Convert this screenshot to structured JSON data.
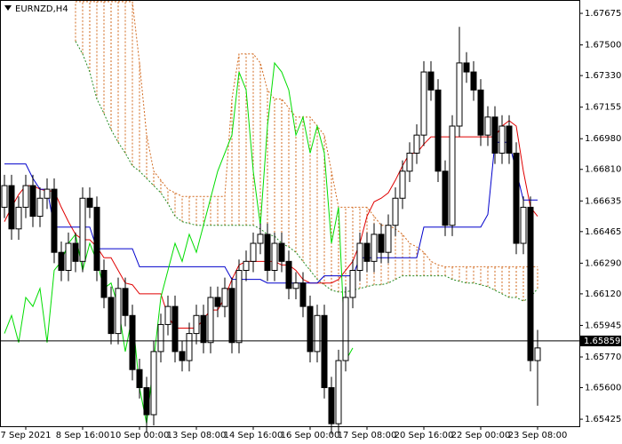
{
  "chart_data": {
    "type": "candlestick",
    "title": "EURNZD,H4",
    "categories": [
      null,
      null,
      null,
      "7 Sep 2021",
      null,
      null,
      null,
      null,
      null,
      null,
      null,
      "8 Sep 16:00",
      null,
      null,
      null,
      null,
      null,
      null,
      null,
      "10 Sep 00:00",
      null,
      null,
      null,
      null,
      null,
      null,
      null,
      "13 Sep 08:00",
      null,
      null,
      null,
      null,
      null,
      null,
      null,
      "14 Sep 16:00",
      null,
      null,
      null,
      null,
      null,
      null,
      null,
      "16 Sep 00:00",
      null,
      null,
      null,
      null,
      null,
      null,
      null,
      "17 Sep 08:00",
      null,
      null,
      null,
      null,
      null,
      null,
      null,
      "20 Sep 16:00",
      null,
      null,
      null,
      null,
      null,
      null,
      null,
      "22 Sep 00:00",
      null,
      null,
      null,
      null,
      null,
      null,
      null,
      "23 Sep 08:00"
    ],
    "open": [
      1.666,
      1.6672,
      1.6648,
      1.666,
      1.6672,
      1.6655,
      1.6665,
      1.667,
      1.6635,
      1.6625,
      1.664,
      1.663,
      1.6665,
      1.666,
      1.6625,
      1.661,
      1.659,
      1.6615,
      1.66,
      1.657,
      1.656,
      1.6545,
      1.658,
      1.6595,
      1.6605,
      1.658,
      1.6575,
      1.659,
      1.66,
      1.6585,
      1.661,
      1.6605,
      1.6615,
      1.6585,
      1.6625,
      1.663,
      1.664,
      1.6645,
      1.6625,
      1.664,
      1.663,
      1.6615,
      1.6618,
      1.6605,
      1.658,
      1.66,
      1.656,
      1.654,
      1.6575,
      1.661,
      1.6625,
      1.664,
      1.663,
      1.6645,
      1.6635,
      1.665,
      1.6665,
      1.668,
      1.669,
      1.67,
      1.6735,
      1.6725,
      1.668,
      1.665,
      1.6705,
      1.674,
      1.6735,
      1.6725,
      1.67,
      1.671,
      1.669,
      1.6705,
      1.669,
      1.664,
      1.666,
      1.6575
    ],
    "high": [
      1.6678,
      1.6678,
      1.6666,
      1.6678,
      1.6678,
      1.6671,
      1.6676,
      1.6676,
      1.6641,
      1.6646,
      1.6646,
      1.6671,
      1.6671,
      1.6666,
      1.6631,
      1.6616,
      1.6621,
      1.6621,
      1.6606,
      1.6576,
      1.6566,
      1.6586,
      1.6601,
      1.6611,
      1.6611,
      1.6586,
      1.6596,
      1.6606,
      1.6606,
      1.6616,
      1.6616,
      1.6621,
      1.6621,
      1.6631,
      1.6636,
      1.6646,
      1.6651,
      1.6651,
      1.6646,
      1.6646,
      1.6636,
      1.6624,
      1.6624,
      1.6611,
      1.6606,
      1.6606,
      1.6566,
      1.6581,
      1.6616,
      1.6631,
      1.6646,
      1.6646,
      1.6651,
      1.6651,
      1.6656,
      1.6671,
      1.6686,
      1.6696,
      1.6706,
      1.6741,
      1.6741,
      1.6731,
      1.6686,
      1.6711,
      1.676,
      1.6746,
      1.6741,
      1.6731,
      1.6716,
      1.6716,
      1.6711,
      1.6711,
      1.6696,
      1.6666,
      1.6666,
      1.6592
    ],
    "low": [
      1.6654,
      1.6642,
      1.6642,
      1.6654,
      1.6649,
      1.6649,
      1.6659,
      1.6629,
      1.6619,
      1.6619,
      1.6624,
      1.6624,
      1.6654,
      1.6619,
      1.6604,
      1.6584,
      1.6584,
      1.6594,
      1.6564,
      1.6554,
      1.6535,
      1.6539,
      1.6574,
      1.6589,
      1.6574,
      1.6569,
      1.6569,
      1.6584,
      1.6579,
      1.6579,
      1.6599,
      1.6599,
      1.6579,
      1.6579,
      1.6619,
      1.6624,
      1.6634,
      1.6619,
      1.6619,
      1.6624,
      1.6609,
      1.6609,
      1.6599,
      1.6574,
      1.6574,
      1.6554,
      1.6534,
      1.6534,
      1.6569,
      1.6604,
      1.6619,
      1.6624,
      1.6624,
      1.6629,
      1.6629,
      1.6644,
      1.6659,
      1.6674,
      1.6684,
      1.6694,
      1.6719,
      1.6674,
      1.6644,
      1.6644,
      1.6699,
      1.6729,
      1.6719,
      1.6694,
      1.6694,
      1.6684,
      1.6684,
      1.6684,
      1.6634,
      1.6634,
      1.6569,
      1.655
    ],
    "close": [
      1.6672,
      1.6648,
      1.666,
      1.6672,
      1.6655,
      1.6665,
      1.667,
      1.6635,
      1.6625,
      1.664,
      1.663,
      1.6665,
      1.666,
      1.6625,
      1.661,
      1.659,
      1.6615,
      1.66,
      1.657,
      1.656,
      1.6545,
      1.658,
      1.6595,
      1.6605,
      1.658,
      1.6575,
      1.659,
      1.66,
      1.6585,
      1.661,
      1.6605,
      1.6615,
      1.6585,
      1.6625,
      1.663,
      1.664,
      1.6645,
      1.6625,
      1.664,
      1.663,
      1.6615,
      1.6618,
      1.6605,
      1.658,
      1.66,
      1.656,
      1.654,
      1.6575,
      1.661,
      1.6625,
      1.664,
      1.663,
      1.6645,
      1.6635,
      1.665,
      1.6665,
      1.668,
      1.669,
      1.67,
      1.6735,
      1.6725,
      1.668,
      1.665,
      1.6705,
      1.674,
      1.6735,
      1.6725,
      1.67,
      1.671,
      1.669,
      1.6705,
      1.669,
      1.664,
      1.666,
      1.6575,
      1.6582
    ],
    "up_color": "#ffffff",
    "down_color": "#000000",
    "edge_color": "#000000",
    "lines": [
      {
        "color": "#e00000",
        "values": [
          1.6652,
          1.666,
          1.6667,
          1.6672,
          1.6672,
          1.667,
          1.6669,
          1.6669,
          1.666,
          1.6652,
          1.6645,
          1.6642,
          1.6642,
          1.6638,
          1.6632,
          1.6632,
          1.6625,
          1.6618,
          1.6617,
          1.6612,
          1.6612,
          1.6612,
          1.6612,
          1.66,
          1.6593,
          1.6593,
          1.6593,
          1.6593,
          1.6598,
          1.6603,
          1.6603,
          1.661,
          1.662,
          1.6628,
          1.663,
          1.663,
          1.663,
          1.663,
          1.663,
          1.6628,
          1.6628,
          1.6625,
          1.662,
          1.6618,
          1.6618,
          1.6618,
          1.6618,
          1.662,
          1.6625,
          1.663,
          1.664,
          1.6655,
          1.6663,
          1.6665,
          1.6668,
          1.6675,
          1.6683,
          1.669,
          1.669,
          1.6695,
          1.6699,
          1.6699,
          1.6699,
          1.6699,
          1.6699,
          1.6699,
          1.6699,
          1.6699,
          1.6699,
          1.6699,
          1.6705,
          1.6708,
          1.6705,
          1.668,
          1.666,
          1.6655
        ]
      },
      {
        "color": "#0000cc",
        "values": [
          1.6684,
          1.6684,
          1.6684,
          1.6684,
          1.6676,
          1.667,
          1.667,
          1.6649,
          1.6649,
          1.6649,
          1.6649,
          1.6649,
          1.6649,
          1.6637,
          1.6637,
          1.6637,
          1.6637,
          1.6637,
          1.6637,
          1.6627,
          1.6627,
          1.6627,
          1.6627,
          1.6627,
          1.6627,
          1.6627,
          1.6627,
          1.6627,
          1.6627,
          1.6627,
          1.6627,
          1.6627,
          1.662,
          1.662,
          1.662,
          1.662,
          1.662,
          1.6618,
          1.6618,
          1.6618,
          1.6618,
          1.6618,
          1.6618,
          1.6618,
          1.6618,
          1.6622,
          1.6622,
          1.6622,
          1.6622,
          1.6622,
          1.6632,
          1.6632,
          1.6632,
          1.6632,
          1.6632,
          1.6632,
          1.6632,
          1.6632,
          1.6632,
          1.6649,
          1.6649,
          1.6649,
          1.6649,
          1.6649,
          1.6649,
          1.6649,
          1.6649,
          1.6649,
          1.6656,
          1.6696,
          1.6696,
          1.6696,
          1.668,
          1.6664,
          1.6664,
          1.6664
        ]
      },
      {
        "color": "#00dd00",
        "values": [
          1.659,
          1.66,
          1.6585,
          1.661,
          1.6605,
          1.6615,
          1.6585,
          1.6625,
          1.663,
          1.664,
          1.6645,
          1.6625,
          1.664,
          1.663,
          1.6615,
          1.6618,
          1.6605,
          1.658,
          1.66,
          1.656,
          1.654,
          1.6575,
          1.661,
          1.6625,
          1.664,
          1.663,
          1.6645,
          1.6635,
          1.665,
          1.6665,
          1.668,
          1.669,
          1.67,
          1.6735,
          1.6725,
          1.668,
          1.665,
          1.6705,
          1.674,
          1.6735,
          1.6725,
          1.67,
          1.671,
          1.669,
          1.6705,
          1.669,
          1.664,
          1.666,
          1.6575,
          1.6582,
          null,
          null,
          null,
          null,
          null,
          null,
          null,
          null,
          null,
          null,
          null,
          null,
          null,
          null,
          null,
          null,
          null,
          null,
          null,
          null,
          null,
          null,
          null,
          null,
          null,
          null
        ]
      }
    ],
    "cloud": {
      "span_a": [
        null,
        null,
        null,
        null,
        null,
        null,
        null,
        null,
        null,
        null,
        1.6752,
        1.6745,
        1.6735,
        1.672,
        1.6712,
        1.6703,
        1.6696,
        1.669,
        1.6683,
        1.668,
        1.6676,
        1.6672,
        1.6668,
        1.6662,
        1.6655,
        1.6652,
        1.6651,
        1.665,
        1.665,
        1.665,
        1.665,
        1.665,
        1.665,
        1.665,
        1.665,
        1.665,
        1.6648,
        1.6645,
        1.6644,
        1.664,
        1.6638,
        1.6635,
        1.663,
        1.6625,
        1.662,
        1.6617,
        1.6614,
        1.6613,
        1.6613,
        1.6614,
        1.6615,
        1.6616,
        1.6617,
        1.6617,
        1.6618,
        1.662,
        1.6622,
        1.6622,
        1.6622,
        1.6622,
        1.6622,
        1.6622,
        1.6622,
        1.662,
        1.6619,
        1.6618,
        1.6618,
        1.6617,
        1.6616,
        1.6614,
        1.6612,
        1.661,
        1.661,
        1.6608,
        1.661,
        1.6615
      ],
      "span_b": [
        null,
        null,
        null,
        null,
        null,
        null,
        null,
        null,
        null,
        null,
        1.6774,
        1.6774,
        1.6774,
        1.6774,
        1.6774,
        1.6774,
        1.6774,
        1.6774,
        1.6774,
        1.674,
        1.67,
        1.668,
        1.6675,
        1.667,
        1.6668,
        1.6666,
        1.6666,
        1.6666,
        1.6666,
        1.6666,
        1.6666,
        1.6666,
        1.672,
        1.6745,
        1.6745,
        1.6745,
        1.674,
        1.6725,
        1.672,
        1.672,
        1.6715,
        1.671,
        1.671,
        1.671,
        1.6705,
        1.67,
        1.668,
        1.666,
        1.666,
        1.666,
        1.666,
        1.666,
        1.6655,
        1.665,
        1.665,
        1.6648,
        1.6645,
        1.664,
        1.6638,
        1.6635,
        1.663,
        1.6628,
        1.6627,
        1.6627,
        1.6627,
        1.6627,
        1.6627,
        1.6627,
        1.6627,
        1.6627,
        1.6627,
        1.6627,
        1.6627,
        1.6627,
        1.6627,
        1.6627
      ],
      "color_b_above": "#d2691e",
      "color_a_above": "#228b22"
    },
    "price_line": 1.65859,
    "ylim": [
      1.65386,
      1.67749
    ],
    "yticks": [
      1.67675,
      {
        "value": 1.675,
        "label": "1.67500"
      },
      {
        "value": 1.6733,
        "label": "1.67330"
      },
      1.67155,
      {
        "value": 1.6698,
        "label": "1.66980"
      },
      {
        "value": 1.6681,
        "label": "1.66810"
      },
      1.66635,
      1.66465,
      {
        "value": 1.6629,
        "label": "1.66290"
      },
      {
        "value": 1.6612,
        "label": "1.66120"
      },
      1.65945,
      {
        "value": 1.6577,
        "label": "1.65770"
      },
      {
        "value": 1.656,
        "label": "1.65600"
      },
      1.65425
    ]
  }
}
